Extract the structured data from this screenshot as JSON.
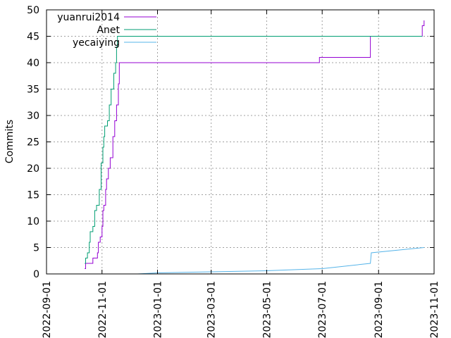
{
  "chart_data": {
    "type": "line",
    "title": "",
    "xlabel": "",
    "ylabel": "Commits",
    "x_type": "date",
    "xlim": [
      "2022-09-01",
      "2023-11-01"
    ],
    "ylim": [
      0,
      50
    ],
    "x_ticks": [
      "2022-09-01",
      "2022-11-01",
      "2023-01-01",
      "2023-03-01",
      "2023-05-01",
      "2023-07-01",
      "2023-09-01",
      "2023-11-01"
    ],
    "y_ticks": [
      "0",
      "5",
      "10",
      "15",
      "20",
      "25",
      "30",
      "35",
      "40",
      "45",
      "50"
    ],
    "grid": true,
    "legend_position": "top-left",
    "series": [
      {
        "name": "yuanrui2014",
        "color": "#9400d3",
        "step": true,
        "points": [
          [
            "2022-10-13",
            1
          ],
          [
            "2022-10-14",
            2
          ],
          [
            "2022-10-22",
            3
          ],
          [
            "2022-10-27",
            4
          ],
          [
            "2022-10-28",
            6
          ],
          [
            "2022-10-30",
            7
          ],
          [
            "2022-11-01",
            9
          ],
          [
            "2022-11-02",
            12
          ],
          [
            "2022-11-03",
            13
          ],
          [
            "2022-11-05",
            16
          ],
          [
            "2022-11-06",
            18
          ],
          [
            "2022-11-08",
            20
          ],
          [
            "2022-11-10",
            22
          ],
          [
            "2022-11-13",
            26
          ],
          [
            "2022-11-15",
            29
          ],
          [
            "2022-11-17",
            32
          ],
          [
            "2022-11-19",
            36
          ],
          [
            "2022-11-20",
            40
          ],
          [
            "2023-06-28",
            41
          ],
          [
            "2023-08-23",
            45
          ],
          [
            "2023-10-19",
            47
          ],
          [
            "2023-10-21",
            48
          ]
        ]
      },
      {
        "name": "Anet",
        "color": "#009e73",
        "step": true,
        "points": [
          [
            "2022-10-13",
            2
          ],
          [
            "2022-10-14",
            3
          ],
          [
            "2022-10-16",
            4
          ],
          [
            "2022-10-18",
            6
          ],
          [
            "2022-10-19",
            8
          ],
          [
            "2022-10-22",
            9
          ],
          [
            "2022-10-24",
            12
          ],
          [
            "2022-10-26",
            13
          ],
          [
            "2022-10-29",
            16
          ],
          [
            "2022-10-31",
            21
          ],
          [
            "2022-11-02",
            24
          ],
          [
            "2022-11-03",
            26
          ],
          [
            "2022-11-04",
            28
          ],
          [
            "2022-11-07",
            29
          ],
          [
            "2022-11-09",
            32
          ],
          [
            "2022-11-11",
            35
          ],
          [
            "2022-11-14",
            38
          ],
          [
            "2022-11-16",
            40
          ],
          [
            "2022-11-17",
            43
          ],
          [
            "2022-11-18",
            45
          ],
          [
            "2023-10-19",
            45
          ]
        ]
      },
      {
        "name": "yecaiying",
        "color": "#56b4e9",
        "step": false,
        "points": [
          [
            "2022-12-10",
            0
          ],
          [
            "2023-01-01",
            0.2
          ],
          [
            "2023-03-01",
            0.4
          ],
          [
            "2023-05-01",
            0.6
          ],
          [
            "2023-06-15",
            0.9
          ],
          [
            "2023-07-01",
            1.0
          ],
          [
            "2023-08-23",
            2.0
          ],
          [
            "2023-08-24",
            4.0
          ],
          [
            "2023-10-21",
            5.0
          ]
        ]
      }
    ]
  }
}
